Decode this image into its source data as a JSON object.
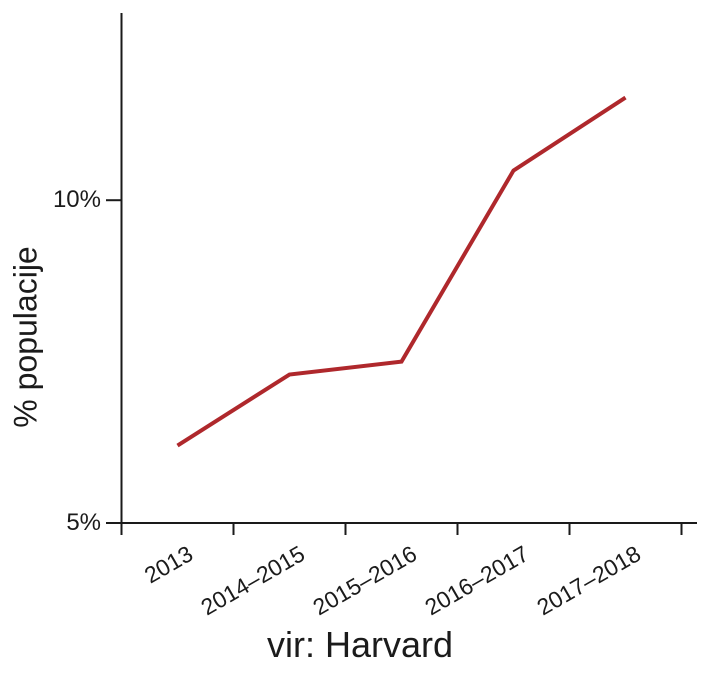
{
  "figure": {
    "background_color": "#FFFFFF"
  },
  "chart_data": {
    "type": "line",
    "title": "",
    "xlabel": "vir: Harvard",
    "ylabel": "% populacije",
    "categories": [
      "2013",
      "2014–2015",
      "2015–2016",
      "2016–2017",
      "2017–2018"
    ],
    "values": [
      6.2,
      7.3,
      7.5,
      10.46,
      11.59
    ],
    "series": [
      {
        "name": "% populacije",
        "values": [
          6.2,
          7.3,
          7.5,
          10.46,
          11.59
        ]
      }
    ],
    "ylim": [
      5,
      12.9
    ],
    "yticks": [
      {
        "value": 10,
        "label": "10%"
      },
      {
        "value": 5,
        "label": "5%"
      }
    ],
    "tick_placement": "boundaries",
    "grid": false,
    "legend": "none",
    "line_color": "#AF282C",
    "axis_color": "#1A1A1A",
    "text_color": "#1B1B1B"
  }
}
